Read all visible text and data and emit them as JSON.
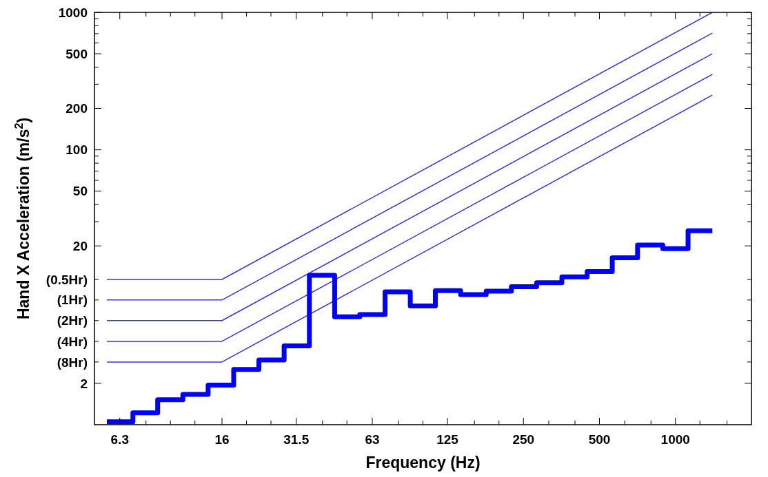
{
  "chart_data": {
    "type": "line",
    "xlabel": "Frequency (Hz)",
    "ylabel": "Hand X Acceleration (m/s$^{2}$)",
    "log": "xy",
    "grid": false,
    "marker": "none",
    "xlim": [
      5,
      2000
    ],
    "xticks": [
      6.3,
      {
        "value": 8,
        "label": null
      },
      {
        "value": 10,
        "label": null
      },
      {
        "value": 12.5,
        "label": null
      },
      16,
      {
        "value": 20,
        "label": null
      },
      {
        "value": 25,
        "label": null
      },
      31.5,
      {
        "value": 40,
        "label": null
      },
      {
        "value": 50,
        "label": null
      },
      63,
      {
        "value": 80,
        "label": null
      },
      {
        "value": 100,
        "label": null
      },
      125,
      {
        "value": 160,
        "label": null
      },
      {
        "value": 200,
        "label": null
      },
      250,
      {
        "value": 315,
        "label": null
      },
      {
        "value": 400,
        "label": null
      },
      500,
      {
        "value": 630,
        "label": null
      },
      {
        "value": 800,
        "label": null
      },
      1000,
      {
        "value": 1250,
        "label": null
      },
      {
        "value": 1600,
        "label": null
      }
    ],
    "ylim": [
      1,
      1000
    ],
    "yticks": [
      2,
      {
        "value": 2.86,
        "label": null
      },
      {
        "value": 4.04,
        "label": null
      },
      {
        "value": 5.72,
        "label": null
      },
      {
        "value": 8.08,
        "label": null
      },
      {
        "value": 11.4,
        "label": null
      },
      20,
      {
        "value": 30,
        "label": null
      },
      {
        "value": 40,
        "label": null
      },
      50,
      {
        "value": 60,
        "label": null
      },
      {
        "value": 70,
        "label": null
      },
      {
        "value": 80,
        "label": null
      },
      {
        "value": 90,
        "label": null
      },
      100,
      200,
      {
        "value": 300,
        "label": null
      },
      {
        "value": 400,
        "label": null
      },
      500,
      {
        "value": 600,
        "label": null
      },
      {
        "value": 700,
        "label": null
      },
      {
        "value": 800,
        "label": null
      },
      {
        "value": 900,
        "label": null
      },
      1000
    ],
    "series": [
      {
        "name": "(0.5Hr)",
        "color": "#3333ee",
        "x": [
          5.6,
          16,
          1400
        ],
        "values": [
          11.4,
          11.4,
          1000
        ]
      },
      {
        "name": "(1Hr)",
        "color": "#3333ee",
        "x": [
          5.6,
          16,
          1400
        ],
        "values": [
          8.08,
          8.08,
          707
        ]
      },
      {
        "name": "(2Hr)",
        "color": "#3333ee",
        "x": [
          5.6,
          16,
          1400
        ],
        "values": [
          5.72,
          5.72,
          500
        ]
      },
      {
        "name": "(4Hr)",
        "color": "#3333ee",
        "x": [
          5.6,
          16,
          1400
        ],
        "values": [
          4.04,
          4.04,
          354
        ]
      },
      {
        "name": "(8Hr)",
        "color": "#3333ee",
        "x": [
          5.6,
          16,
          1400
        ],
        "values": [
          2.86,
          2.86,
          250
        ]
      },
      {
        "type": "step",
        "color": "#0000ff",
        "x": [
          5.6,
          7.1,
          8.9,
          11.2,
          14.1,
          17.8,
          22.4,
          28.2,
          35.5,
          44.7,
          56.2,
          70.8,
          89.1,
          112,
          141,
          178,
          224,
          282,
          355,
          447,
          562,
          708,
          891,
          1122,
          1400
        ],
        "values": [
          1.05,
          1.22,
          1.52,
          1.66,
          1.94,
          2.52,
          2.96,
          3.74,
          12.2,
          6.09,
          6.33,
          9.25,
          7.31,
          9.45,
          8.84,
          9.37,
          10.1,
          10.8,
          11.9,
          13.0,
          16.4,
          20.3,
          19.1,
          25.8,
          25.8
        ]
      }
    ]
  }
}
